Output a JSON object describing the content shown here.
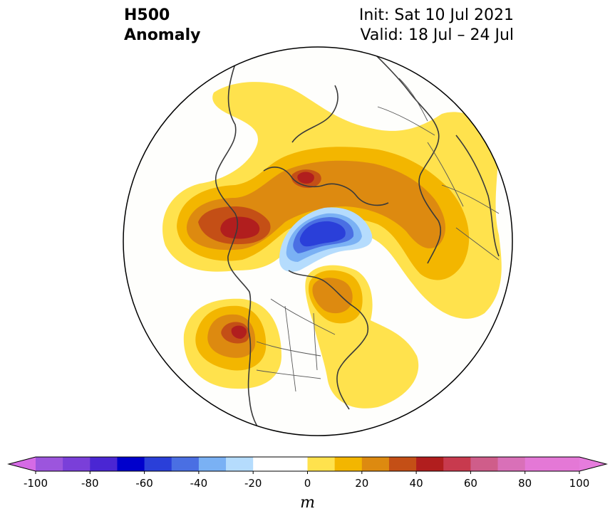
{
  "title": {
    "line1": "H500",
    "line2": "Anomaly"
  },
  "subtitle": {
    "init": "Init: Sat 10 Jul 2021",
    "valid": "Valid: 18 Jul – 24 Jul"
  },
  "colorbar": {
    "unit": "m",
    "min": -100,
    "max": 100,
    "extend": "both",
    "levels": [
      -100,
      -90,
      -80,
      -70,
      -60,
      -50,
      -40,
      -30,
      -20,
      -10,
      0,
      10,
      20,
      30,
      40,
      50,
      60,
      70,
      80,
      90,
      100
    ],
    "colors": [
      "#9c55dd",
      "#7a3fd9",
      "#4a26d3",
      "#0000cc",
      "#2a3fd9",
      "#4a6fe3",
      "#7ab1f4",
      "#b5dcfd",
      "#ffffff",
      "#ffffff",
      "#ffe24d",
      "#f3b600",
      "#dd8a10",
      "#c44f16",
      "#b11e1e",
      "#c83a4e",
      "#cf5d8a",
      "#d970b8",
      "#e478d6",
      "#e478d6"
    ],
    "extend_low_color": "#d56be5",
    "extend_high_color": "#e67cdd",
    "tick_labels": [
      "-100",
      "-80",
      "-60",
      "-40",
      "-20",
      "0",
      "20",
      "40",
      "60",
      "80",
      "100"
    ]
  },
  "anomaly_colors": {
    "plus10": "#ffe24d",
    "plus20": "#f3b600",
    "plus30": "#dd8a10",
    "plus40": "#c44f16",
    "plus50": "#b11e1e",
    "minus10": "#b5dcfd",
    "minus20": "#7ab1f4",
    "minus30": "#4a6fe3",
    "minus40": "#2a3fd9"
  }
}
